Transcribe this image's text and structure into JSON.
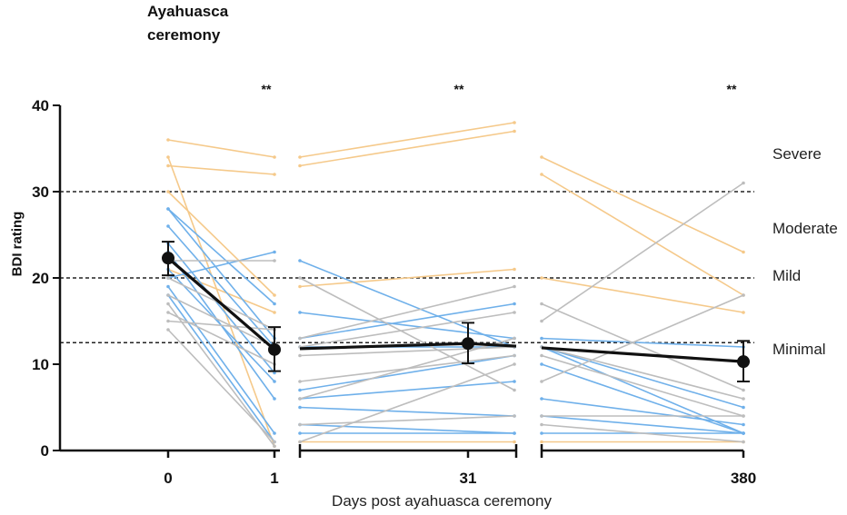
{
  "header": {
    "title_line1": "Ayahuasca",
    "title_line2": "ceremony"
  },
  "chart_data": {
    "type": "line",
    "title": "",
    "xlabel": "Days post ayahuasca ceremony",
    "ylabel": "BDI rating",
    "ylim": [
      0,
      40
    ],
    "y_ticks": [
      0,
      10,
      20,
      30,
      40
    ],
    "x_tick_labels": [
      "0",
      "1",
      "31",
      "380"
    ],
    "thresholds": [
      12.5,
      20,
      30
    ],
    "severity_labels": [
      "Severe",
      "Moderate",
      "Mild",
      "Minimal"
    ],
    "significance": [
      "**",
      "**",
      "**"
    ],
    "colors": {
      "orange": "#f5c98a",
      "blue": "#6fb0ea",
      "grey": "#bdbdbd",
      "mean": "#111111"
    },
    "panel1_day0_to_day1": [
      {
        "color": "orange",
        "values": [
          36,
          34
        ]
      },
      {
        "color": "orange",
        "values": [
          34,
          0.5
        ]
      },
      {
        "color": "orange",
        "values": [
          33,
          32
        ]
      },
      {
        "color": "orange",
        "values": [
          30,
          18
        ]
      },
      {
        "color": "orange",
        "values": [
          21,
          16
        ]
      },
      {
        "color": "blue",
        "values": [
          28,
          13
        ]
      },
      {
        "color": "blue",
        "values": [
          28,
          17
        ]
      },
      {
        "color": "blue",
        "values": [
          26,
          12
        ]
      },
      {
        "color": "blue",
        "values": [
          24,
          9
        ]
      },
      {
        "color": "blue",
        "values": [
          23,
          6
        ]
      },
      {
        "color": "blue",
        "values": [
          21,
          8
        ]
      },
      {
        "color": "blue",
        "values": [
          20,
          23
        ]
      },
      {
        "color": "blue",
        "values": [
          19,
          2
        ]
      },
      {
        "color": "blue",
        "values": [
          18,
          1
        ]
      },
      {
        "color": "grey",
        "values": [
          22,
          22
        ]
      },
      {
        "color": "grey",
        "values": [
          20,
          14
        ]
      },
      {
        "color": "grey",
        "values": [
          18,
          12
        ]
      },
      {
        "color": "grey",
        "values": [
          17,
          0.5
        ]
      },
      {
        "color": "grey",
        "values": [
          16,
          10
        ]
      },
      {
        "color": "grey",
        "values": [
          15,
          14
        ]
      },
      {
        "color": "grey",
        "values": [
          14,
          1
        ]
      }
    ],
    "panel2_day1_to_day31": [
      {
        "color": "orange",
        "values": [
          34,
          38
        ]
      },
      {
        "color": "orange",
        "values": [
          33,
          37
        ]
      },
      {
        "color": "orange",
        "values": [
          19,
          21
        ]
      },
      {
        "color": "orange",
        "values": [
          1,
          1
        ]
      },
      {
        "color": "blue",
        "values": [
          22,
          12
        ]
      },
      {
        "color": "blue",
        "values": [
          16,
          13
        ]
      },
      {
        "color": "blue",
        "values": [
          13,
          17
        ]
      },
      {
        "color": "blue",
        "values": [
          12,
          12
        ]
      },
      {
        "color": "blue",
        "values": [
          7,
          11
        ]
      },
      {
        "color": "blue",
        "values": [
          6,
          8
        ]
      },
      {
        "color": "blue",
        "values": [
          5,
          4
        ]
      },
      {
        "color": "blue",
        "values": [
          3,
          2
        ]
      },
      {
        "color": "blue",
        "values": [
          2,
          2
        ]
      },
      {
        "color": "grey",
        "values": [
          20,
          7
        ]
      },
      {
        "color": "grey",
        "values": [
          13,
          19
        ]
      },
      {
        "color": "grey",
        "values": [
          12,
          16
        ]
      },
      {
        "color": "grey",
        "values": [
          11,
          12
        ]
      },
      {
        "color": "grey",
        "values": [
          8,
          11
        ]
      },
      {
        "color": "grey",
        "values": [
          6,
          13
        ]
      },
      {
        "color": "grey",
        "values": [
          3,
          4
        ]
      },
      {
        "color": "grey",
        "values": [
          1,
          10
        ]
      }
    ],
    "panel3_day31_to_day380": [
      {
        "color": "orange",
        "values": [
          34,
          23
        ]
      },
      {
        "color": "orange",
        "values": [
          32,
          18
        ]
      },
      {
        "color": "orange",
        "values": [
          20,
          16
        ]
      },
      {
        "color": "orange",
        "values": [
          1,
          1
        ]
      },
      {
        "color": "blue",
        "values": [
          13,
          12
        ]
      },
      {
        "color": "blue",
        "values": [
          12,
          5
        ]
      },
      {
        "color": "blue",
        "values": [
          12,
          2
        ]
      },
      {
        "color": "blue",
        "values": [
          10,
          2
        ]
      },
      {
        "color": "blue",
        "values": [
          6,
          3
        ]
      },
      {
        "color": "blue",
        "values": [
          4,
          2
        ]
      },
      {
        "color": "blue",
        "values": [
          2,
          2
        ]
      },
      {
        "color": "grey",
        "values": [
          17,
          7
        ]
      },
      {
        "color": "grey",
        "values": [
          15,
          31
        ]
      },
      {
        "color": "grey",
        "values": [
          12,
          6
        ]
      },
      {
        "color": "grey",
        "values": [
          11,
          4
        ]
      },
      {
        "color": "grey",
        "values": [
          8,
          18
        ]
      },
      {
        "color": "grey",
        "values": [
          4,
          4
        ]
      },
      {
        "color": "grey",
        "values": [
          3,
          1
        ]
      }
    ],
    "mean": {
      "panel1": [
        {
          "y": 22.3,
          "lo": 20.3,
          "hi": 24.2
        },
        {
          "y": 11.7,
          "lo": 9.2,
          "hi": 14.3
        }
      ],
      "panel2": [
        11.8,
        12.4,
        12.1
      ],
      "panel2_point": {
        "y": 12.4,
        "lo": 10.1,
        "hi": 14.8
      },
      "panel3": [
        11.9,
        10.3
      ],
      "panel3_point": {
        "y": 10.3,
        "lo": 8.0,
        "hi": 12.7
      }
    }
  }
}
